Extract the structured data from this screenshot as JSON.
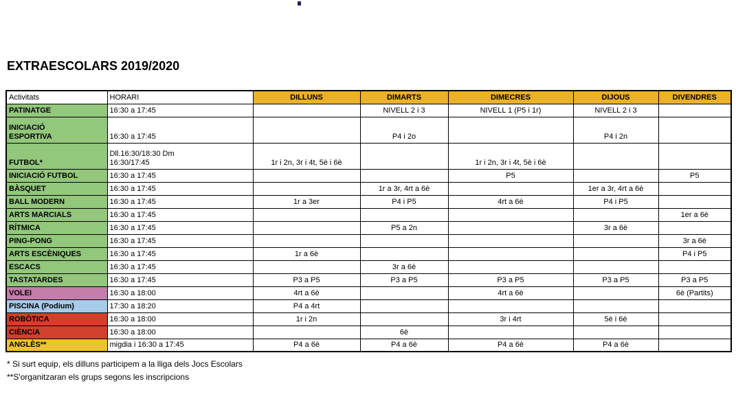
{
  "page": {
    "title": "EXTRAESCOLARS 2019/2020"
  },
  "table": {
    "headers": {
      "activities": "Activitats",
      "schedule": "HORARI",
      "days": [
        "DILLUNS",
        "DIMARTS",
        "DIMECRES",
        "DIJOUS",
        "DIVENDRES"
      ]
    },
    "rows": [
      {
        "name_lines": [
          "PATINATGE"
        ],
        "color": "green",
        "horari_lines": [
          "16:30 a 17:45"
        ],
        "days": [
          "",
          "NIVELL 2 i 3",
          "NIVELL 1 (P5 i 1r)",
          "NIVELL 2 i 3",
          ""
        ],
        "double": false
      },
      {
        "name_lines": [
          "INICIACIÓ",
          "ESPORTIVA"
        ],
        "color": "green",
        "horari_lines": [
          "16:30 a 17:45"
        ],
        "days": [
          "",
          "P4 i 2o",
          "",
          "P4 i 2n",
          ""
        ],
        "double": true
      },
      {
        "name_lines": [
          "FUTBOL*"
        ],
        "color": "green",
        "horari_lines": [
          "Dll.16:30/18:30 Dm",
          "16:30/17:45"
        ],
        "days": [
          "1r i 2n, 3r i 4t, 5è i 6è",
          "",
          "1r i 2n, 3r i 4t, 5è i 6è",
          "",
          ""
        ],
        "double": true
      },
      {
        "name_lines": [
          "INICIACIÓ FUTBOL"
        ],
        "color": "green",
        "horari_lines": [
          "16:30 a 17:45"
        ],
        "days": [
          "",
          "",
          "P5",
          "",
          "P5"
        ],
        "double": false
      },
      {
        "name_lines": [
          "BÀSQUET"
        ],
        "color": "green",
        "horari_lines": [
          "16:30 a 17:45"
        ],
        "days": [
          "",
          "1r a 3r, 4rt a 6è",
          "",
          "1er a 3r, 4rt a 6è",
          ""
        ],
        "double": false
      },
      {
        "name_lines": [
          "BALL MODERN"
        ],
        "color": "green",
        "horari_lines": [
          "16:30 a 17:45"
        ],
        "days": [
          "1r a 3er",
          "P4 i P5",
          "4rt a 6è",
          "P4 i P5",
          ""
        ],
        "double": false
      },
      {
        "name_lines": [
          "ARTS MARCIALS"
        ],
        "color": "green",
        "horari_lines": [
          "16:30 a 17:45"
        ],
        "days": [
          "",
          "",
          "",
          "",
          "1er a 6è"
        ],
        "double": false
      },
      {
        "name_lines": [
          "RÍTMICA"
        ],
        "color": "green",
        "horari_lines": [
          "16:30 a 17:45"
        ],
        "days": [
          "",
          "P5 a 2n",
          "",
          "3r a 6è",
          ""
        ],
        "double": false
      },
      {
        "name_lines": [
          "PING-PONG"
        ],
        "color": "green",
        "horari_lines": [
          "16:30 a 17:45"
        ],
        "days": [
          "",
          "",
          "",
          "",
          "3r a 6è"
        ],
        "double": false
      },
      {
        "name_lines": [
          "ARTS ESCÈNIQUES"
        ],
        "color": "green",
        "horari_lines": [
          "16:30 a 17:45"
        ],
        "days": [
          "1r a 6è",
          "",
          "",
          "",
          "P4 i P5"
        ],
        "double": false
      },
      {
        "name_lines": [
          "ESCACS"
        ],
        "color": "green",
        "horari_lines": [
          "16:30 a 17:45"
        ],
        "days": [
          "",
          "3r a 6è",
          "",
          "",
          ""
        ],
        "double": false
      },
      {
        "name_lines": [
          "TASTATARDES"
        ],
        "color": "green",
        "horari_lines": [
          "16:30 a 17:45"
        ],
        "days": [
          "P3 a P5",
          "P3 a P5",
          "P3 a P5",
          "P3 a P5",
          "P3 a P5"
        ],
        "double": false
      },
      {
        "name_lines": [
          "VOLEI"
        ],
        "color": "pink",
        "horari_lines": [
          "16:30 a 18:00"
        ],
        "days": [
          "4rt a 6è",
          "",
          "4rt a 6è",
          "",
          "6è (Partits)"
        ],
        "double": false
      },
      {
        "name_lines": [
          "PISCINA (Podium)"
        ],
        "color": "blue",
        "horari_lines": [
          "17:30 a 18:20"
        ],
        "days": [
          "P4 a 4rt",
          "",
          "",
          "",
          ""
        ],
        "double": false
      },
      {
        "name_lines": [
          "ROBÒTICA"
        ],
        "color": "red",
        "horari_lines": [
          "16:30 a 18:00"
        ],
        "days": [
          "1r i 2n",
          "",
          "3r i 4rt",
          "5è i 6è",
          ""
        ],
        "double": false
      },
      {
        "name_lines": [
          "CIÈNCIA"
        ],
        "color": "red",
        "horari_lines": [
          "16:30 a 18:00"
        ],
        "days": [
          "",
          "6è",
          "",
          "",
          ""
        ],
        "double": false
      },
      {
        "name_lines": [
          "ANGLÈS**"
        ],
        "color": "yellow",
        "horari_lines": [
          "migdia i 16:30 a 17:45"
        ],
        "days": [
          "P4 a 6è",
          "P4 a 6è",
          "P4 a 6è",
          "P4 a 6è",
          ""
        ],
        "double": false
      }
    ]
  },
  "footnotes": [
    "* Si surt equip, els dilluns participem a la lliga dels Jocs Escolars",
    "**S'organitzaran els grups segons les inscripcions"
  ],
  "colors": {
    "header_gold": "#EAB129",
    "green": "#92C77C",
    "pink": "#C47CA9",
    "blue": "#A9CBEA",
    "red": "#D0402B",
    "yellow": "#EFC32B",
    "border": "#000000"
  }
}
